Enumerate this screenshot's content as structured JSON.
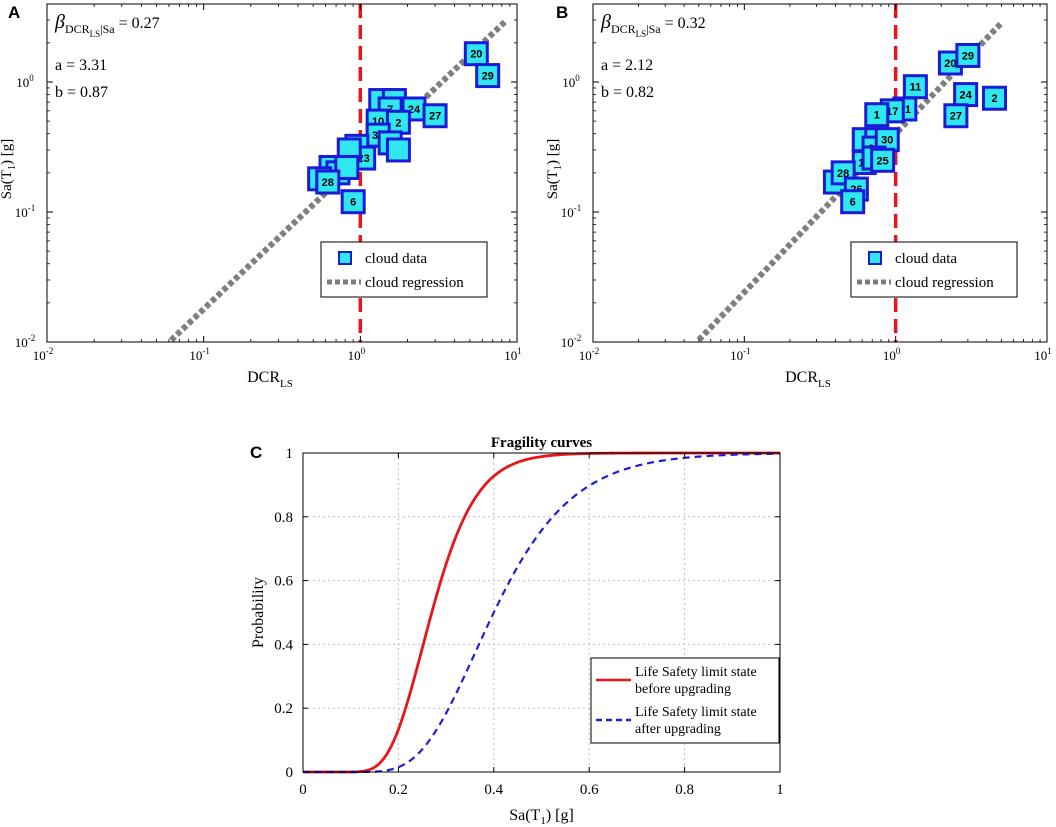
{
  "figure": {
    "panels": [
      "A",
      "B",
      "C"
    ]
  },
  "chart_data": [
    {
      "type": "scatter",
      "panel": "A",
      "xscale": "log",
      "yscale": "log",
      "xlim": [
        0.01,
        10
      ],
      "ylim": [
        0.01,
        3.98
      ],
      "xticks": [
        {
          "v": 0.01,
          "base": "10",
          "exp": "-2"
        },
        {
          "v": 0.1,
          "base": "10",
          "exp": "-1"
        },
        {
          "v": 1,
          "base": "10",
          "exp": "0"
        },
        {
          "v": 10,
          "base": "10",
          "exp": "1"
        }
      ],
      "yticks": [
        {
          "v": 0.01,
          "base": "10",
          "exp": "-2"
        },
        {
          "v": 0.1,
          "base": "10",
          "exp": "-1"
        },
        {
          "v": 1,
          "base": "10",
          "exp": "0"
        }
      ],
      "xlabel": {
        "main": "DCR",
        "sub": "LS"
      },
      "ylabel": {
        "pre": "Sa(T",
        "sub": "1",
        "post": ") [g]"
      },
      "stats": {
        "beta_symbol": "β",
        "beta_sub_main": "DCR",
        "beta_sub_sub": "LS",
        "beta_cond": "|Sa",
        "beta_value": " = 0.27",
        "a_text": "a = 3.31",
        "b_text": "b = 0.87"
      },
      "threshold_x": 1,
      "legend": {
        "position": "lower-right",
        "entries": [
          "cloud data",
          "cloud regression"
        ]
      },
      "regression": {
        "a": 3.31,
        "b": 0.87,
        "x_from": 0.062,
        "x_to": 8.5
      },
      "points": [
        {
          "x": 5.5,
          "y": 1.65,
          "label": "20"
        },
        {
          "x": 6.5,
          "y": 1.12,
          "label": "29"
        },
        {
          "x": 1.35,
          "y": 0.72,
          "label": ""
        },
        {
          "x": 1.65,
          "y": 0.72,
          "label": ""
        },
        {
          "x": 1.55,
          "y": 0.62,
          "label": "7"
        },
        {
          "x": 2.2,
          "y": 0.62,
          "label": "24"
        },
        {
          "x": 3.0,
          "y": 0.55,
          "label": "27"
        },
        {
          "x": 1.3,
          "y": 0.5,
          "label": "10"
        },
        {
          "x": 1.75,
          "y": 0.49,
          "label": "2"
        },
        {
          "x": 1.3,
          "y": 0.39,
          "label": "30"
        },
        {
          "x": 1.55,
          "y": 0.34,
          "label": ""
        },
        {
          "x": 1.75,
          "y": 0.3,
          "label": ""
        },
        {
          "x": 0.95,
          "y": 0.32,
          "label": ""
        },
        {
          "x": 1.05,
          "y": 0.26,
          "label": "23"
        },
        {
          "x": 0.85,
          "y": 0.3,
          "label": ""
        },
        {
          "x": 0.65,
          "y": 0.22,
          "label": ""
        },
        {
          "x": 0.72,
          "y": 0.2,
          "label": "25"
        },
        {
          "x": 0.82,
          "y": 0.22,
          "label": ""
        },
        {
          "x": 0.55,
          "y": 0.18,
          "label": ""
        },
        {
          "x": 0.62,
          "y": 0.17,
          "label": "28"
        },
        {
          "x": 0.9,
          "y": 0.12,
          "label": "6"
        }
      ]
    },
    {
      "type": "scatter",
      "panel": "B",
      "xscale": "log",
      "yscale": "log",
      "xlim": [
        0.01,
        10
      ],
      "ylim": [
        0.01,
        3.98
      ],
      "xticks": [
        {
          "v": 0.01,
          "base": "10",
          "exp": "-2"
        },
        {
          "v": 0.1,
          "base": "10",
          "exp": "-1"
        },
        {
          "v": 1,
          "base": "10",
          "exp": "0"
        },
        {
          "v": 10,
          "base": "10",
          "exp": "1"
        }
      ],
      "yticks": [
        {
          "v": 0.01,
          "base": "10",
          "exp": "-2"
        },
        {
          "v": 0.1,
          "base": "10",
          "exp": "-1"
        },
        {
          "v": 1,
          "base": "10",
          "exp": "0"
        }
      ],
      "xlabel": {
        "main": "DCR",
        "sub": "LS"
      },
      "ylabel": {
        "pre": "Sa(T",
        "sub": "1",
        "post": ") [g]"
      },
      "stats": {
        "beta_symbol": "β",
        "beta_sub_main": "DCR",
        "beta_sub_sub": "LS",
        "beta_cond": "|Sa",
        "beta_value": " = 0.32",
        "a_text": "a = 2.12",
        "b_text": "b = 0.82"
      },
      "threshold_x": 1,
      "legend": {
        "position": "lower-right",
        "entries": [
          "cloud data",
          "cloud regression"
        ]
      },
      "regression": {
        "a": 2.12,
        "b": 0.82,
        "x_from": 0.05,
        "x_to": 5.0
      },
      "points": [
        {
          "x": 2.3,
          "y": 1.4,
          "label": "20"
        },
        {
          "x": 3.0,
          "y": 1.6,
          "label": "29"
        },
        {
          "x": 1.35,
          "y": 0.92,
          "label": "11"
        },
        {
          "x": 2.9,
          "y": 0.8,
          "label": "24"
        },
        {
          "x": 4.5,
          "y": 0.75,
          "label": "2"
        },
        {
          "x": 2.5,
          "y": 0.55,
          "label": "27"
        },
        {
          "x": 1.15,
          "y": 0.62,
          "label": "21"
        },
        {
          "x": 0.95,
          "y": 0.6,
          "label": "17"
        },
        {
          "x": 0.75,
          "y": 0.56,
          "label": "1"
        },
        {
          "x": 0.62,
          "y": 0.36,
          "label": "2"
        },
        {
          "x": 0.75,
          "y": 0.36,
          "label": ""
        },
        {
          "x": 0.72,
          "y": 0.31,
          "label": "22"
        },
        {
          "x": 0.88,
          "y": 0.36,
          "label": "30"
        },
        {
          "x": 0.62,
          "y": 0.24,
          "label": "18"
        },
        {
          "x": 0.72,
          "y": 0.26,
          "label": ""
        },
        {
          "x": 0.82,
          "y": 0.25,
          "label": "25"
        },
        {
          "x": 0.4,
          "y": 0.17,
          "label": ""
        },
        {
          "x": 0.45,
          "y": 0.2,
          "label": "28"
        },
        {
          "x": 0.55,
          "y": 0.15,
          "label": "26"
        },
        {
          "x": 0.52,
          "y": 0.12,
          "label": "6"
        }
      ]
    },
    {
      "type": "line",
      "panel": "C",
      "title": "Fragility curves",
      "xlabel": {
        "pre": "Sa(T",
        "sub": "1",
        "post": ") [g]"
      },
      "ylabel": "Probability",
      "xlim": [
        0,
        1
      ],
      "ylim": [
        0,
        1
      ],
      "xticks": [
        "0",
        "0.2",
        "0.4",
        "0.6",
        "0.8",
        "1"
      ],
      "yticks": [
        "0",
        "0.2",
        "0.4",
        "0.6",
        "0.8",
        "1"
      ],
      "grid": true,
      "legend": {
        "position": "lower-right"
      },
      "series": [
        {
          "name_line1": "Life Safety limit state",
          "name_line2": "before upgrading",
          "color": "#e8161b",
          "dash": "solid",
          "median": 0.27,
          "beta": 0.27
        },
        {
          "name_line1": "Life Safety limit state",
          "name_line2": "after upgrading",
          "color": "#1f1fd6",
          "dash": "dashed",
          "median": 0.4,
          "beta": 0.32
        }
      ]
    }
  ],
  "colors": {
    "marker_fill": "#2ee7f0",
    "marker_edge": "#1a1ad8",
    "regression": "#7f7f7f",
    "threshold": "#e8161b",
    "axis": "#000000",
    "grid": "#bfbfbf"
  }
}
